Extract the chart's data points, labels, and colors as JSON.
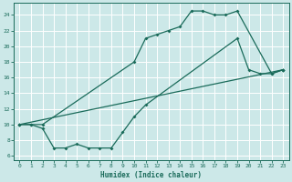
{
  "xlabel": "Humidex (Indice chaleur)",
  "bg_color": "#cce8e8",
  "line_color": "#1a6b5a",
  "grid_color": "#ffffff",
  "xlim": [
    -0.5,
    23.5
  ],
  "ylim": [
    5.5,
    25.5
  ],
  "xticks": [
    0,
    1,
    2,
    3,
    4,
    5,
    6,
    7,
    8,
    9,
    10,
    11,
    12,
    13,
    14,
    15,
    16,
    17,
    18,
    19,
    20,
    21,
    22,
    23
  ],
  "yticks": [
    6,
    8,
    10,
    12,
    14,
    16,
    18,
    20,
    22,
    24
  ],
  "line1_x": [
    0,
    1,
    2,
    10,
    11,
    12,
    13,
    14,
    15,
    16,
    17,
    18,
    19,
    22,
    23
  ],
  "line1_y": [
    10,
    10,
    10,
    18,
    21,
    21.5,
    22,
    22.5,
    24.5,
    24.5,
    24,
    24,
    24.5,
    16.5,
    17
  ],
  "line2_x": [
    0,
    1,
    2,
    3,
    4,
    5,
    6,
    7,
    8,
    9,
    10,
    11,
    19,
    20,
    21,
    22,
    23
  ],
  "line2_y": [
    10,
    10,
    9.5,
    7,
    7,
    7.5,
    7,
    7,
    7,
    9,
    11,
    12.5,
    21,
    17,
    16.5,
    16.5,
    17
  ],
  "line3_x": [
    0,
    23
  ],
  "line3_y": [
    10,
    17
  ]
}
